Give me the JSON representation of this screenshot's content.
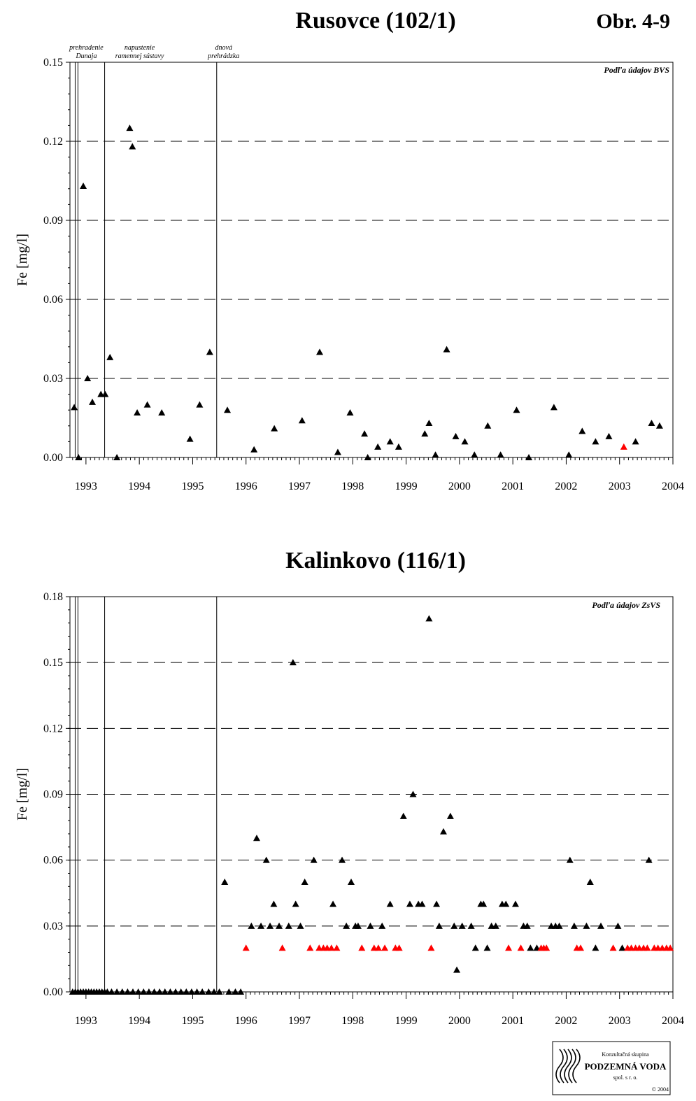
{
  "figure_label": "Obr. 4-9",
  "logo": {
    "line1": "Konzultačná skupina",
    "line2": "PODZEMNÁ VODA",
    "line3": "spol. s r. o.",
    "copyright": "© 2004"
  },
  "colors": {
    "normal": "#000000",
    "below_limit": "#ff0000"
  },
  "chart_data": [
    {
      "type": "scatter",
      "title": "Rusovce (102/1)",
      "ylabel": "Fe [mg/l]",
      "xlabel": "",
      "source_note": "Podľa údajov BVS",
      "xlim": [
        1992.7,
        2004.0
      ],
      "ylim": [
        0,
        0.15
      ],
      "y_ticks": [
        "0.00",
        "0.03",
        "0.06",
        "0.09",
        "0.12",
        "0.15"
      ],
      "x_ticks": [
        "1993",
        "1994",
        "1995",
        "1996",
        "1997",
        "1998",
        "1999",
        "2000",
        "2001",
        "2002",
        "2003",
        "2004"
      ],
      "grid": "horizontal dashed",
      "events": [
        {
          "x": 1992.85,
          "label_lines": [
            "prehradenie",
            "Dunaja"
          ]
        },
        {
          "x": 1993.35,
          "label_lines": [
            "napustenie",
            "ramennej sústavy"
          ]
        },
        {
          "x": 1995.45,
          "label_lines": [
            "dnová",
            "prehrádzka"
          ]
        }
      ],
      "series": [
        {
          "marker": "triangle",
          "color": "#000000",
          "points": [
            [
              1992.78,
              0.019
            ],
            [
              1992.86,
              0.0
            ],
            [
              1992.95,
              0.103
            ],
            [
              1993.03,
              0.03
            ],
            [
              1993.12,
              0.021
            ],
            [
              1993.28,
              0.024
            ],
            [
              1993.36,
              0.024
            ],
            [
              1993.45,
              0.038
            ],
            [
              1993.58,
              0.0
            ],
            [
              1993.82,
              0.125
            ],
            [
              1993.87,
              0.118
            ],
            [
              1993.96,
              0.017
            ],
            [
              1994.15,
              0.02
            ],
            [
              1994.42,
              0.017
            ],
            [
              1994.95,
              0.007
            ],
            [
              1995.13,
              0.02
            ],
            [
              1995.32,
              0.04
            ],
            [
              1995.65,
              0.018
            ],
            [
              1996.15,
              0.003
            ],
            [
              1996.53,
              0.011
            ],
            [
              1997.05,
              0.014
            ],
            [
              1997.38,
              0.04
            ],
            [
              1997.72,
              0.002
            ],
            [
              1997.95,
              0.017
            ],
            [
              1998.22,
              0.009
            ],
            [
              1998.28,
              0.0
            ],
            [
              1998.47,
              0.004
            ],
            [
              1998.7,
              0.006
            ],
            [
              1998.86,
              0.004
            ],
            [
              1999.35,
              0.009
            ],
            [
              1999.43,
              0.013
            ],
            [
              1999.55,
              0.001
            ],
            [
              1999.76,
              0.041
            ],
            [
              1999.93,
              0.008
            ],
            [
              2000.1,
              0.006
            ],
            [
              2000.28,
              0.001
            ],
            [
              2000.53,
              0.012
            ],
            [
              2000.77,
              0.001
            ],
            [
              2001.07,
              0.018
            ],
            [
              2001.3,
              0.0
            ],
            [
              2001.77,
              0.019
            ],
            [
              2002.05,
              0.001
            ],
            [
              2002.3,
              0.01
            ],
            [
              2002.55,
              0.006
            ],
            [
              2002.8,
              0.008
            ],
            [
              2003.3,
              0.006
            ],
            [
              2003.6,
              0.013
            ],
            [
              2003.75,
              0.012
            ]
          ]
        },
        {
          "marker": "triangle",
          "color": "#ff0000",
          "points": [
            [
              2003.08,
              0.004
            ]
          ]
        }
      ]
    },
    {
      "type": "scatter",
      "title": "Kalinkovo (116/1)",
      "ylabel": "Fe [mg/l]",
      "xlabel": "",
      "source_note": "Podľa údajov ZsVS",
      "xlim": [
        1992.7,
        2004.0
      ],
      "ylim": [
        0,
        0.18
      ],
      "y_ticks": [
        "0.00",
        "0.03",
        "0.06",
        "0.09",
        "0.12",
        "0.15",
        "0.18"
      ],
      "x_ticks": [
        "1993",
        "1994",
        "1995",
        "1996",
        "1997",
        "1998",
        "1999",
        "2000",
        "2001",
        "2002",
        "2003",
        "2004"
      ],
      "grid": "horizontal dashed",
      "events": [
        {
          "x": 1992.85
        },
        {
          "x": 1993.35
        },
        {
          "x": 1995.45
        }
      ],
      "series": [
        {
          "marker": "triangle",
          "color": "#000000",
          "points": [
            [
              1992.75,
              0.0
            ],
            [
              1992.8,
              0.0
            ],
            [
              1992.85,
              0.0
            ],
            [
              1992.9,
              0.0
            ],
            [
              1992.95,
              0.0
            ],
            [
              1993.0,
              0.0
            ],
            [
              1993.05,
              0.0
            ],
            [
              1993.1,
              0.0
            ],
            [
              1993.15,
              0.0
            ],
            [
              1993.2,
              0.0
            ],
            [
              1993.25,
              0.0
            ],
            [
              1993.3,
              0.0
            ],
            [
              1993.35,
              0.0
            ],
            [
              1993.4,
              0.0
            ],
            [
              1993.48,
              0.0
            ],
            [
              1993.58,
              0.0
            ],
            [
              1993.68,
              0.0
            ],
            [
              1993.78,
              0.0
            ],
            [
              1993.88,
              0.0
            ],
            [
              1993.98,
              0.0
            ],
            [
              1994.08,
              0.0
            ],
            [
              1994.18,
              0.0
            ],
            [
              1994.28,
              0.0
            ],
            [
              1994.38,
              0.0
            ],
            [
              1994.48,
              0.0
            ],
            [
              1994.58,
              0.0
            ],
            [
              1994.68,
              0.0
            ],
            [
              1994.78,
              0.0
            ],
            [
              1994.88,
              0.0
            ],
            [
              1994.98,
              0.0
            ],
            [
              1995.08,
              0.0
            ],
            [
              1995.18,
              0.0
            ],
            [
              1995.3,
              0.0
            ],
            [
              1995.4,
              0.0
            ],
            [
              1995.5,
              0.0
            ],
            [
              1995.68,
              0.0
            ],
            [
              1995.8,
              0.0
            ],
            [
              1995.9,
              0.0
            ],
            [
              1995.6,
              0.05
            ],
            [
              1996.1,
              0.03
            ],
            [
              1996.2,
              0.07
            ],
            [
              1996.28,
              0.03
            ],
            [
              1996.38,
              0.06
            ],
            [
              1996.45,
              0.03
            ],
            [
              1996.52,
              0.04
            ],
            [
              1996.62,
              0.03
            ],
            [
              1996.8,
              0.03
            ],
            [
              1996.88,
              0.15
            ],
            [
              1996.93,
              0.04
            ],
            [
              1997.02,
              0.03
            ],
            [
              1997.1,
              0.05
            ],
            [
              1997.27,
              0.06
            ],
            [
              1997.63,
              0.04
            ],
            [
              1997.8,
              0.06
            ],
            [
              1997.88,
              0.03
            ],
            [
              1997.97,
              0.05
            ],
            [
              1998.05,
              0.03
            ],
            [
              1998.1,
              0.03
            ],
            [
              1998.33,
              0.03
            ],
            [
              1998.55,
              0.03
            ],
            [
              1998.7,
              0.04
            ],
            [
              1998.95,
              0.08
            ],
            [
              1999.07,
              0.04
            ],
            [
              1999.13,
              0.09
            ],
            [
              1999.23,
              0.04
            ],
            [
              1999.3,
              0.04
            ],
            [
              1999.43,
              0.17
            ],
            [
              1999.57,
              0.04
            ],
            [
              1999.62,
              0.03
            ],
            [
              1999.7,
              0.073
            ],
            [
              1999.83,
              0.08
            ],
            [
              1999.9,
              0.03
            ],
            [
              1999.95,
              0.01
            ],
            [
              2000.05,
              0.03
            ],
            [
              2000.22,
              0.03
            ],
            [
              2000.3,
              0.02
            ],
            [
              2000.4,
              0.04
            ],
            [
              2000.45,
              0.04
            ],
            [
              2000.52,
              0.02
            ],
            [
              2000.6,
              0.03
            ],
            [
              2000.68,
              0.03
            ],
            [
              2000.8,
              0.04
            ],
            [
              2000.87,
              0.04
            ],
            [
              2001.05,
              0.04
            ],
            [
              2001.2,
              0.03
            ],
            [
              2001.27,
              0.03
            ],
            [
              2001.33,
              0.02
            ],
            [
              2001.45,
              0.02
            ],
            [
              2001.72,
              0.03
            ],
            [
              2001.8,
              0.03
            ],
            [
              2001.87,
              0.03
            ],
            [
              2002.07,
              0.06
            ],
            [
              2002.15,
              0.03
            ],
            [
              2002.38,
              0.03
            ],
            [
              2002.45,
              0.05
            ],
            [
              2002.55,
              0.02
            ],
            [
              2002.65,
              0.03
            ],
            [
              2002.97,
              0.03
            ],
            [
              2003.05,
              0.02
            ],
            [
              2003.55,
              0.06
            ]
          ]
        },
        {
          "marker": "triangle",
          "color": "#ff0000",
          "points": [
            [
              1996.0,
              0.02
            ],
            [
              1996.68,
              0.02
            ],
            [
              1997.2,
              0.02
            ],
            [
              1997.37,
              0.02
            ],
            [
              1997.45,
              0.02
            ],
            [
              1997.52,
              0.02
            ],
            [
              1997.6,
              0.02
            ],
            [
              1997.7,
              0.02
            ],
            [
              1998.17,
              0.02
            ],
            [
              1998.4,
              0.02
            ],
            [
              1998.48,
              0.02
            ],
            [
              1998.6,
              0.02
            ],
            [
              1998.8,
              0.02
            ],
            [
              1998.87,
              0.02
            ],
            [
              1999.47,
              0.02
            ],
            [
              2000.92,
              0.02
            ],
            [
              2001.15,
              0.02
            ],
            [
              2001.53,
              0.02
            ],
            [
              2001.58,
              0.02
            ],
            [
              2001.63,
              0.02
            ],
            [
              2002.2,
              0.02
            ],
            [
              2002.27,
              0.02
            ],
            [
              2002.88,
              0.02
            ],
            [
              2003.15,
              0.02
            ],
            [
              2003.22,
              0.02
            ],
            [
              2003.3,
              0.02
            ],
            [
              2003.37,
              0.02
            ],
            [
              2003.45,
              0.02
            ],
            [
              2003.52,
              0.02
            ],
            [
              2003.65,
              0.02
            ],
            [
              2003.72,
              0.02
            ],
            [
              2003.8,
              0.02
            ],
            [
              2003.88,
              0.02
            ],
            [
              2003.95,
              0.02
            ]
          ]
        }
      ]
    }
  ]
}
